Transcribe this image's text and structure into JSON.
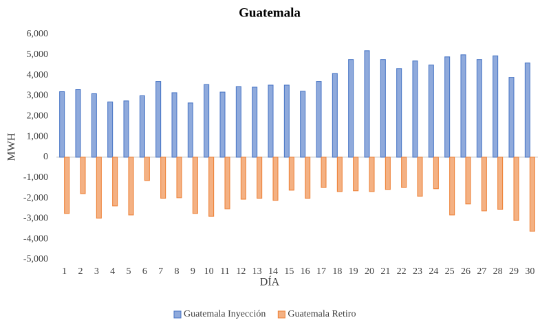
{
  "chart_data": {
    "type": "bar",
    "title": "Guatemala",
    "x_label": "DÍA",
    "y_label": "MWH",
    "categories": [
      "1",
      "2",
      "3",
      "4",
      "5",
      "6",
      "7",
      "8",
      "9",
      "10",
      "11",
      "12",
      "13",
      "14",
      "15",
      "16",
      "17",
      "18",
      "19",
      "20",
      "21",
      "22",
      "23",
      "24",
      "25",
      "26",
      "27",
      "28",
      "29",
      "30"
    ],
    "series": [
      {
        "name": "Guatemala Inyección",
        "color": "#8faadc",
        "edge": "#4472c4",
        "values": [
          3200,
          3300,
          3100,
          2700,
          2750,
          3000,
          3700,
          3150,
          2650,
          3550,
          3180,
          3450,
          3420,
          3520,
          3520,
          3220,
          3700,
          4090,
          4770,
          5200,
          4770,
          4330,
          4700,
          4500,
          4900,
          5000,
          4770,
          4950,
          3900,
          4600
        ]
      },
      {
        "name": "Guatemala Retiro",
        "color": "#f4b183",
        "edge": "#ed7d31",
        "values": [
          -2750,
          -1780,
          -2980,
          -2380,
          -2820,
          -1140,
          -2010,
          -1980,
          -2750,
          -2890,
          -2520,
          -2050,
          -2010,
          -2110,
          -1610,
          -2010,
          -1480,
          -1680,
          -1640,
          -1680,
          -1580,
          -1480,
          -1910,
          -1540,
          -2820,
          -2280,
          -2620,
          -2550,
          -3090,
          -3620
        ]
      }
    ],
    "ylim": [
      -5000,
      6000
    ],
    "yticks": [
      {
        "value": -5000,
        "label": "-5,000"
      },
      {
        "value": -4000,
        "label": "-4,000"
      },
      {
        "value": -3000,
        "label": "-3,000"
      },
      {
        "value": -2000,
        "label": "-2,000"
      },
      {
        "value": -1000,
        "label": "-1,000"
      },
      0,
      {
        "value": 1000,
        "label": "1,000"
      },
      {
        "value": 2000,
        "label": "2,000"
      },
      {
        "value": 3000,
        "label": "3,000"
      },
      {
        "value": 4000,
        "label": "4,000"
      },
      {
        "value": 5000,
        "label": "5,000"
      },
      {
        "value": 6000,
        "label": "6,000"
      }
    ],
    "grid": false,
    "legend": "bottom"
  }
}
